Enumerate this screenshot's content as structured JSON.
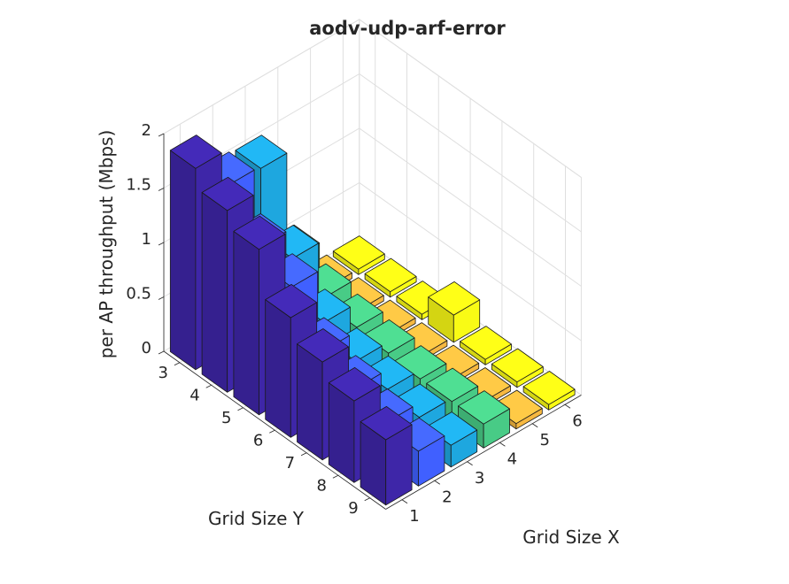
{
  "chart_data": {
    "type": "bar3d",
    "title": "aodv-udp-arf-error",
    "xlabel": "Grid Size X",
    "ylabel": "Grid Size Y",
    "zlabel": "per AP throughput (Mbps)",
    "x": [
      1,
      2,
      3,
      4,
      5,
      6
    ],
    "y": [
      3,
      4,
      5,
      6,
      7,
      8,
      9
    ],
    "zlim": [
      0,
      2
    ],
    "zticks": [
      "0",
      "0.5",
      "1",
      "1.5",
      "2"
    ],
    "grid": true,
    "series_colors": [
      "#3e26a8",
      "#4060ff",
      "#1ea7df",
      "#48cb86",
      "#f6b840",
      "#f9fb15"
    ],
    "values": [
      [
        1.85,
        1.67,
        1.52,
        1.1,
        0.9,
        0.75,
        0.6
      ],
      [
        1.52,
        1.16,
        1.0,
        0.62,
        0.48,
        0.38,
        0.32
      ],
      [
        1.5,
        0.88,
        0.5,
        0.35,
        0.3,
        0.25,
        0.2
      ],
      [
        0.5,
        0.35,
        0.28,
        0.25,
        0.22,
        0.22,
        0.22
      ],
      [
        0.05,
        0.05,
        0.05,
        0.05,
        0.05,
        0.05,
        0.05
      ],
      [
        0.05,
        0.05,
        0.05,
        0.25,
        0.05,
        0.05,
        0.05
      ]
    ]
  }
}
